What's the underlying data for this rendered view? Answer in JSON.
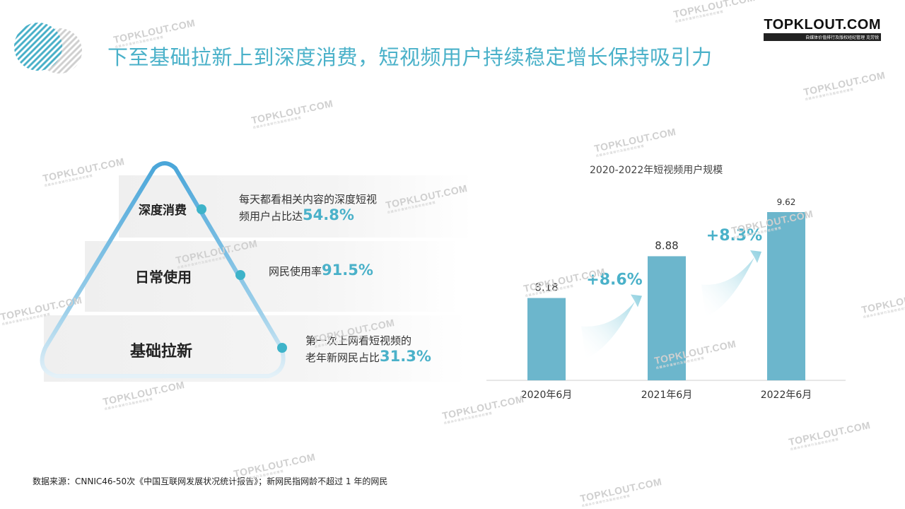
{
  "header": {
    "title": "下至基础拉新上到深度消费，短视频用户持续稳定增长保持吸引力",
    "brand": "TOPKLOUT.COM",
    "brand_sub": "自媒体价值排行及版权经纪管理 克劳锐"
  },
  "pyramid": {
    "tiers": [
      {
        "label": "深度消费",
        "note_lines": [
          "每天都看相关内容的深度短视",
          "频用户占比达"
        ],
        "percent": "54.8%"
      },
      {
        "label": "日常使用",
        "note_lines": [
          "网民使用率"
        ],
        "percent": "91.5%"
      },
      {
        "label": "基础拉新",
        "note_lines": [
          "第一次上网看短视频的",
          "老年新网民占比"
        ],
        "percent": "31.3%"
      }
    ]
  },
  "chart_data": {
    "type": "bar",
    "title": "2020-2022年短视频用户规模",
    "categories": [
      "2020年6月",
      "2021年6月",
      "2022年6月"
    ],
    "values": [
      8.18,
      8.88,
      9.62
    ],
    "value_labels": [
      "8.18",
      "8.88",
      "9.62"
    ],
    "growth_labels": [
      "+8.6%",
      "+8.3%"
    ],
    "bar_color": "#6cb6cc",
    "accent_color": "#4ab1c9",
    "ylim": [
      6.8,
      10.0
    ],
    "grid": false,
    "legend": "none"
  },
  "footnote": "数据来源：CNNIC46-50次《中国互联网发展状况统计报告》；新网民指网龄不超过 1 年的网民",
  "watermark": {
    "text": "TOPKLOUT.COM",
    "sub": "自媒体价值排行及版权经纪管理"
  }
}
